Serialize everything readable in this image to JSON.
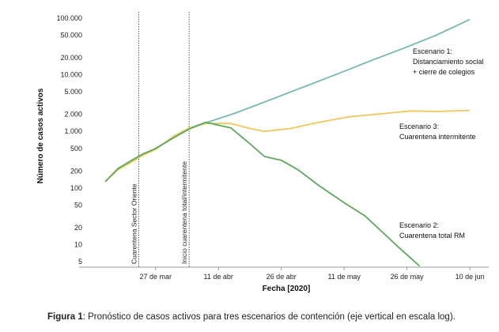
{
  "chart_data": {
    "type": "line",
    "ylabel": "Número de casos activos",
    "xlabel": "Fecha [2020]",
    "yscale": "log",
    "ylim": [
      4,
      110000
    ],
    "xlim": [
      "2020-03-11",
      "2020-06-13"
    ],
    "grid": false,
    "yticks": [
      {
        "v": 100000,
        "label": "100.000"
      },
      {
        "v": 50000,
        "label": "50.000"
      },
      {
        "v": 20000,
        "label": "20.000"
      },
      {
        "v": 10000,
        "label": "10.000"
      },
      {
        "v": 5000,
        "label": "5.000"
      },
      {
        "v": 2000,
        "label": "2.000"
      },
      {
        "v": 1000,
        "label": "1.000"
      },
      {
        "v": 500,
        "label": "500"
      },
      {
        "v": 200,
        "label": "200"
      },
      {
        "v": 100,
        "label": "100"
      },
      {
        "v": 50,
        "label": "50"
      },
      {
        "v": 20,
        "label": "20"
      },
      {
        "v": 10,
        "label": "10"
      },
      {
        "v": 5,
        "label": "5"
      }
    ],
    "xticks": [
      {
        "x": "2020-03-27",
        "label": "27 de mar"
      },
      {
        "x": "2020-04-11",
        "label": "11 de abr"
      },
      {
        "x": "2020-04-26",
        "label": "26 de abr"
      },
      {
        "x": "2020-05-11",
        "label": "11 de may"
      },
      {
        "x": "2020-05-26",
        "label": "26 de may"
      },
      {
        "x": "2020-06-10",
        "label": "10 de jun"
      }
    ],
    "vlines": [
      {
        "x": "2020-03-23",
        "label": "Cuarentena Sector Oriente"
      },
      {
        "x": "2020-04-04",
        "label": "Inicio cuarentena total/intermitente"
      }
    ],
    "series": [
      {
        "color": "#7ab8b4",
        "annotation": [
          "Escenario 1:",
          "Distanciamiento social",
          "+ cierre de colegios"
        ],
        "points": [
          [
            "2020-04-04",
            1150
          ],
          [
            "2020-04-09",
            1500
          ],
          [
            "2020-04-15",
            2100
          ],
          [
            "2020-04-20",
            2900
          ],
          [
            "2020-04-26",
            4300
          ],
          [
            "2020-05-03",
            6800
          ],
          [
            "2020-05-11",
            11500
          ],
          [
            "2020-05-18",
            18500
          ],
          [
            "2020-05-26",
            31000
          ],
          [
            "2020-06-02",
            50000
          ],
          [
            "2020-06-10",
            95000
          ]
        ]
      },
      {
        "color": "#efc75e",
        "annotation": [
          "Escenario 3:",
          "Cuarentena intermitente"
        ],
        "points": [
          [
            "2020-03-15",
            130
          ],
          [
            "2020-03-18",
            210
          ],
          [
            "2020-03-21",
            280
          ],
          [
            "2020-03-24",
            380
          ],
          [
            "2020-03-27",
            480
          ],
          [
            "2020-03-31",
            800
          ],
          [
            "2020-04-04",
            1150
          ],
          [
            "2020-04-08",
            1380
          ],
          [
            "2020-04-14",
            1380
          ],
          [
            "2020-04-18",
            1150
          ],
          [
            "2020-04-22",
            1000
          ],
          [
            "2020-04-28",
            1120
          ],
          [
            "2020-05-04",
            1400
          ],
          [
            "2020-05-12",
            1800
          ],
          [
            "2020-05-20",
            2050
          ],
          [
            "2020-05-27",
            2300
          ],
          [
            "2020-06-02",
            2250
          ],
          [
            "2020-06-10",
            2350
          ]
        ]
      },
      {
        "color": "#5ca85c",
        "annotation": [
          "Escenario 2:",
          "Cuarentena total RM"
        ],
        "points": [
          [
            "2020-03-15",
            130
          ],
          [
            "2020-03-18",
            220
          ],
          [
            "2020-03-21",
            300
          ],
          [
            "2020-03-24",
            400
          ],
          [
            "2020-03-27",
            500
          ],
          [
            "2020-03-31",
            750
          ],
          [
            "2020-04-04",
            1100
          ],
          [
            "2020-04-08",
            1450
          ],
          [
            "2020-04-14",
            1150
          ],
          [
            "2020-04-18",
            650
          ],
          [
            "2020-04-22",
            360
          ],
          [
            "2020-04-26",
            310
          ],
          [
            "2020-04-30",
            210
          ],
          [
            "2020-05-05",
            110
          ],
          [
            "2020-05-11",
            55
          ],
          [
            "2020-05-16",
            32
          ],
          [
            "2020-05-20",
            17
          ],
          [
            "2020-05-24",
            9
          ],
          [
            "2020-05-29",
            4.2
          ]
        ]
      }
    ]
  },
  "caption": {
    "label": "Figura 1",
    "text": ": Pronóstico de casos activos para tres escenarios de contención (eje vertical en escala log)."
  }
}
